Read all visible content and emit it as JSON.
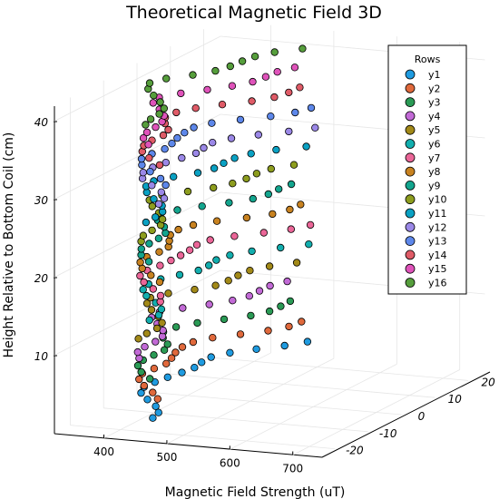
{
  "chart_data": {
    "type": "scatter",
    "title": "Theoretical Magnetic Field 3D",
    "xlabel": "Magnetic Field Strength (uT)",
    "ylabel": "Height Relative to Bottom Coil (cm)",
    "zlabel": "",
    "x_ticks": [
      "400",
      "500",
      "600",
      "700"
    ],
    "y_ticks": [
      "-20",
      "-10",
      "0",
      "10",
      "20"
    ],
    "z_ticks": [
      "10",
      "20",
      "30",
      "40"
    ],
    "xlim": [
      320,
      740
    ],
    "ylim": [
      -25,
      25
    ],
    "zlim": [
      0,
      42
    ],
    "grid": true,
    "legend": {
      "title": "Rows",
      "position": "top-right"
    },
    "x_offsets": [
      -22.5,
      -19.5,
      -16.5,
      -13.5,
      -10.5,
      -7.5,
      -4.5,
      -1.5,
      1.5,
      4.5,
      7.5,
      10.5,
      13.5,
      16.5,
      19.5,
      22.5
    ],
    "series": [
      {
        "name": "y1",
        "height": 2.5,
        "color": "#1f9be0"
      },
      {
        "name": "y2",
        "height": 5.0,
        "color": "#e0693c"
      },
      {
        "name": "y3",
        "height": 7.5,
        "color": "#2a9a55"
      },
      {
        "name": "y4",
        "height": 10.0,
        "color": "#c26ad6"
      },
      {
        "name": "y5",
        "height": 12.5,
        "color": "#a28918"
      },
      {
        "name": "y6",
        "height": 15.0,
        "color": "#12aeae"
      },
      {
        "name": "y7",
        "height": 17.5,
        "color": "#eb6698"
      },
      {
        "name": "y8",
        "height": 20.0,
        "color": "#c88220"
      },
      {
        "name": "y9",
        "height": 22.5,
        "color": "#13a58e"
      },
      {
        "name": "y10",
        "height": 25.0,
        "color": "#8d9d1e"
      },
      {
        "name": "y11",
        "height": 27.5,
        "color": "#0aa1c3"
      },
      {
        "name": "y12",
        "height": 30.0,
        "color": "#9b88e7"
      },
      {
        "name": "y13",
        "height": 32.5,
        "color": "#5d87ea"
      },
      {
        "name": "y14",
        "height": 35.0,
        "color": "#df5b67"
      },
      {
        "name": "y15",
        "height": 37.5,
        "color": "#df53ba"
      },
      {
        "name": "y16",
        "height": 40.0,
        "color": "#569e3c"
      }
    ]
  }
}
